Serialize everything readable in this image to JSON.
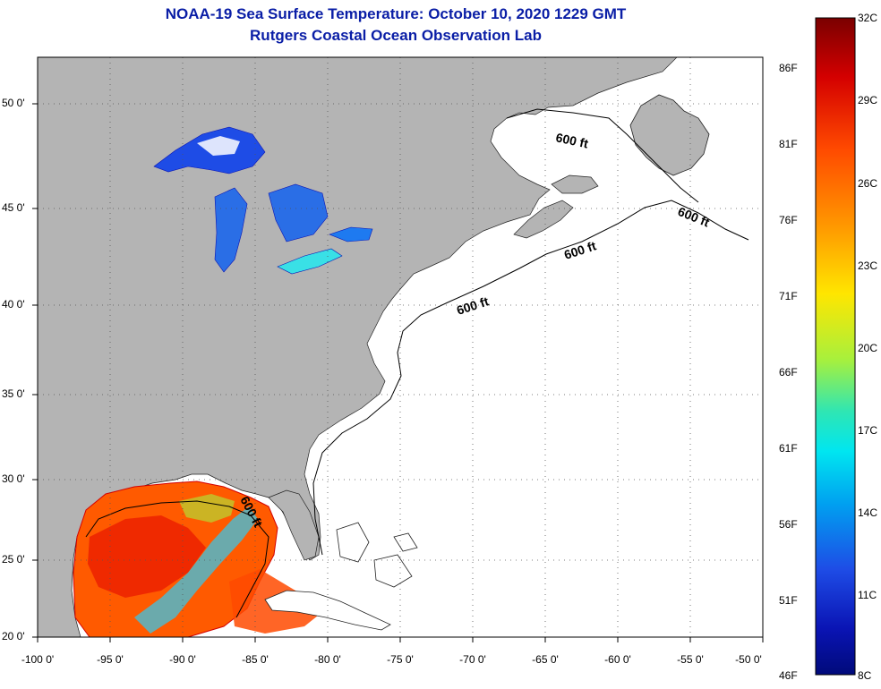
{
  "title": "NOAA-19 Sea Surface Temperature:  October 10, 2020 1229 GMT",
  "subtitle": "Rutgers Coastal Ocean Observation Lab",
  "map": {
    "lon_range": [
      -100,
      -50
    ],
    "lat_range": [
      20,
      52.5
    ],
    "lat_ticks": [
      "50 0'",
      "45 0'",
      "40 0'",
      "35 0'",
      "30 0'",
      "25 0'",
      "20 0'"
    ],
    "lon_ticks": [
      "-100 0'",
      "-95 0'",
      "-90 0'",
      "-85 0'",
      "-80 0'",
      "-75 0'",
      "-70 0'",
      "-65 0'",
      "-60 0'",
      "-55 0'",
      "-50 0'"
    ],
    "contour_label": "600 ft",
    "land_color": "#b4b4b4",
    "ocean_color": "#ffffff",
    "grid": "dotted"
  },
  "colorbar": {
    "f_labels": [
      "86F",
      "81F",
      "76F",
      "71F",
      "66F",
      "61F",
      "56F",
      "51F",
      "46F"
    ],
    "c_labels": [
      "32C",
      "29C",
      "26C",
      "23C",
      "20C",
      "17C",
      "14C",
      "11C",
      "8C"
    ],
    "colors": [
      "#7a0000",
      "#d40000",
      "#ff4a00",
      "#ff9a00",
      "#ffe600",
      "#a8f03c",
      "#2ee6b4",
      "#00e6f0",
      "#00a0f0",
      "#1e4ce6",
      "#0a14b4",
      "#000a7a"
    ]
  }
}
